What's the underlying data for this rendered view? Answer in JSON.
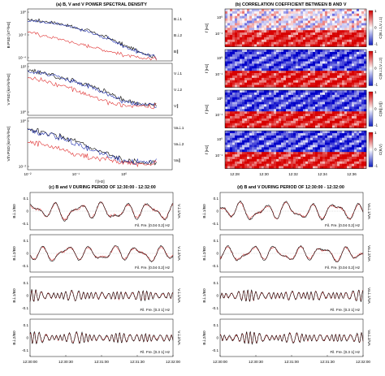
{
  "panel_a": {
    "title": "(a) B, V and V POWER SPECTRAL DENSITY",
    "x_ticks": [
      "10⁻²",
      "10⁻¹",
      "10⁰"
    ],
    "xlabel": "f [Hz]",
    "rows": [
      {
        "ylabel": "B PSD [nT²/Hz]",
        "y_ticks": [
          "10⁰",
          "10⁻²",
          "10⁻⁴"
        ],
        "legend": [
          "B⊥1",
          "B⊥2",
          "B∥"
        ],
        "legend_colors": [
          "#000000",
          "#1f2fb0",
          "#e03030"
        ]
      },
      {
        "ylabel": "V PSD [km²/s²/Hz]",
        "y_ticks": [
          "10²",
          "10⁰"
        ],
        "legend": [
          "V⊥1",
          "V⊥2",
          "V∥"
        ],
        "legend_colors": [
          "#000000",
          "#1f2fb0",
          "#e03030"
        ]
      },
      {
        "ylabel": "Vth PSD [km²/s²/Hz]",
        "y_ticks": [
          "10⁰",
          "10⁻²"
        ],
        "legend": [
          "Va⊥1",
          "Va⊥2",
          "Va∥"
        ],
        "legend_colors": [
          "#000000",
          "#1f2fb0",
          "#e03030"
        ]
      }
    ]
  },
  "panel_b": {
    "title": "(b) CORRELATION COEFFICIENT BETWEEN B AND V",
    "ylabel": "f [Hz]",
    "y_ticks": [
      "10⁰",
      "10⁻¹"
    ],
    "x_ticks": [
      "12:28",
      "12:30",
      "12:32",
      "12:34",
      "12:36"
    ],
    "colorbar_ticks": [
      "1",
      "0.5",
      "0",
      "-0.5",
      "-1"
    ],
    "colorbar_labels": [
      "C(B⊥1,V⊥1)",
      "C(B⊥2,V⊥2)",
      "C(B∥,V∥)",
      "C(B,V)"
    ]
  },
  "panel_c": {
    "title": "(c) B and V DURING PERIOD OF 12:30:00 - 12:32:00",
    "rows": [
      {
        "ylabel": "B⊥1/B0",
        "right_label": "V⊥1/VA",
        "filter": "Fil. Fre. [0.04 0.2] Hz"
      },
      {
        "ylabel": "B⊥2/B0",
        "right_label": "V⊥2/VA",
        "filter": "Fil. Fre. [0.04 0.2] Hz"
      },
      {
        "ylabel": "B⊥1/B0",
        "right_label": "V⊥1/VA",
        "filter": "Fil. Fre. [0.3 1] Hz"
      },
      {
        "ylabel": "B⊥2/B0",
        "right_label": "V⊥2/VA",
        "filter": "Fil. Fre. [0.3 1] Hz"
      }
    ],
    "y_ticks": [
      "0.1",
      "0",
      "-0.1"
    ],
    "x_ticks": [
      "12:30:00",
      "12:30:30",
      "12:31:00",
      "12:31:30",
      "12:32:00"
    ]
  },
  "panel_d": {
    "title": "(d) B and V DURING PERIOD OF 12:30:00 - 12:32:00",
    "rows": [
      {
        "ylabel": "B⊥1/B0",
        "right_label": "Va⊥1/VA",
        "filter": "Fil. Fre. [0.04 0.2] Hz"
      },
      {
        "ylabel": "B⊥2/B0",
        "right_label": "Va⊥2/VA",
        "filter": "Fil. Fre. [0.04 0.2] Hz"
      },
      {
        "ylabel": "B⊥1/B0",
        "right_label": "Va⊥1/VA",
        "filter": "Fil. Fre. [0.3 1] Hz"
      },
      {
        "ylabel": "B⊥2/B0",
        "right_label": "Va⊥2/VA",
        "filter": "Fil. Fre. [0.3 1] Hz"
      }
    ],
    "y_ticks": [
      "0.1",
      "0",
      "-0.1"
    ],
    "x_ticks": [
      "12:30:00",
      "12:30:30",
      "12:31:00",
      "12:31:30",
      "12:32:00"
    ]
  },
  "colors": {
    "black": "#000000",
    "blue": "#1f2fb0",
    "red": "#e03030"
  },
  "chart_data": [
    {
      "type": "line",
      "title": "(a) B, V and V POWER SPECTRAL DENSITY",
      "xlabel": "f [Hz]",
      "xscale": "log",
      "xlim": [
        0.01,
        10
      ],
      "yscale": "log",
      "rows": [
        {
          "ylabel": "B PSD [nT²/Hz]",
          "ylim": [
            5e-05,
            10
          ],
          "x": [
            0.01,
            0.02,
            0.05,
            0.1,
            0.2,
            0.5,
            1,
            2,
            5
          ],
          "series": [
            {
              "name": "B⊥1",
              "values": [
                0.8,
                0.6,
                0.3,
                0.12,
                0.05,
                0.01,
                0.002,
                0.0005,
                0.0001
              ]
            },
            {
              "name": "B⊥2",
              "values": [
                0.6,
                0.5,
                0.25,
                0.1,
                0.04,
                0.008,
                0.0015,
                0.0004,
                0.0001
              ]
            },
            {
              "name": "B∥",
              "values": [
                0.05,
                0.02,
                0.008,
                0.003,
                0.0015,
                0.0005,
                0.0002,
                0.0001,
                8e-05
              ]
            }
          ]
        },
        {
          "ylabel": "V PSD [km²/s²/Hz]",
          "ylim": [
            0.1,
            1000
          ],
          "x": [
            0.01,
            0.02,
            0.05,
            0.1,
            0.2,
            0.5,
            1,
            2,
            5
          ],
          "series": [
            {
              "name": "V⊥1",
              "values": [
                300,
                200,
                80,
                40,
                20,
                5,
                1.5,
                0.8,
                0.6
              ]
            },
            {
              "name": "V⊥2",
              "values": [
                250,
                180,
                70,
                35,
                15,
                4,
                1.2,
                0.7,
                0.6
              ]
            },
            {
              "name": "V∥",
              "values": [
                80,
                50,
                20,
                8,
                3,
                1,
                0.6,
                0.5,
                0.5
              ]
            }
          ]
        },
        {
          "ylabel": "Vth PSD [km²/s²/Hz]",
          "ylim": [
            0.005,
            10
          ],
          "x": [
            0.01,
            0.02,
            0.05,
            0.1,
            0.2,
            0.5,
            1,
            2,
            5
          ],
          "series": [
            {
              "name": "Va⊥1",
              "values": [
                2,
                1.2,
                0.6,
                0.3,
                0.12,
                0.04,
                0.02,
                0.015,
                0.015
              ]
            },
            {
              "name": "Va⊥2",
              "values": [
                1.8,
                1.1,
                0.5,
                0.25,
                0.1,
                0.035,
                0.02,
                0.015,
                0.015
              ]
            },
            {
              "name": "Va∥",
              "values": [
                0.3,
                0.2,
                0.1,
                0.05,
                0.03,
                0.02,
                0.015,
                0.012,
                0.012
              ]
            }
          ]
        }
      ]
    },
    {
      "type": "heatmap",
      "title": "(b) CORRELATION COEFFICIENT BETWEEN B AND V",
      "ylabel": "f [Hz]",
      "yscale": "log",
      "ylim": [
        0.04,
        1.5
      ],
      "x_ticks": [
        "12:28",
        "12:30",
        "12:32",
        "12:34",
        "12:36"
      ],
      "zlim": [
        -1,
        1
      ],
      "rows": [
        {
          "name": "C(B⊥1,V⊥1)",
          "low_freq_sign": 1,
          "high_freq_sign": 0
        },
        {
          "name": "C(B⊥2,V⊥2)",
          "low_freq_sign": 1,
          "high_freq_sign": -1
        },
        {
          "name": "C(B∥,V∥)",
          "low_freq_sign": 1,
          "high_freq_sign": -1
        },
        {
          "name": "C(B,V)",
          "low_freq_sign": 1,
          "high_freq_sign": -1
        }
      ]
    },
    {
      "type": "line",
      "title": "(c) B and V DURING PERIOD OF 12:30:00 - 12:32:00",
      "x_ticks": [
        "12:30:00",
        "12:30:30",
        "12:31:00",
        "12:31:30",
        "12:32:00"
      ],
      "ylim": [
        -0.15,
        0.15
      ],
      "rows": [
        {
          "filter_hz": [
            0.04,
            0.2
          ],
          "amplitude": 0.08,
          "series": [
            "B⊥1/B0",
            "V⊥1/VA"
          ]
        },
        {
          "filter_hz": [
            0.04,
            0.2
          ],
          "amplitude": 0.07,
          "series": [
            "B⊥2/B0",
            "V⊥2/VA"
          ]
        },
        {
          "filter_hz": [
            0.3,
            1
          ],
          "amplitude": 0.05,
          "series": [
            "B⊥1/B0",
            "V⊥1/VA"
          ]
        },
        {
          "filter_hz": [
            0.3,
            1
          ],
          "amplitude": 0.05,
          "series": [
            "B⊥2/B0",
            "V⊥2/VA"
          ]
        }
      ]
    },
    {
      "type": "line",
      "title": "(d) B and V DURING PERIOD OF 12:30:00 - 12:32:00",
      "x_ticks": [
        "12:30:00",
        "12:30:30",
        "12:31:00",
        "12:31:30",
        "12:32:00"
      ],
      "ylim": [
        -0.15,
        0.15
      ],
      "rows": [
        {
          "filter_hz": [
            0.04,
            0.2
          ],
          "amplitude": 0.08,
          "series": [
            "B⊥1/B0",
            "Va⊥1/VA"
          ]
        },
        {
          "filter_hz": [
            0.04,
            0.2
          ],
          "amplitude": 0.07,
          "series": [
            "B⊥2/B0",
            "Va⊥2/VA"
          ]
        },
        {
          "filter_hz": [
            0.3,
            1
          ],
          "amplitude": 0.05,
          "series": [
            "B⊥1/B0",
            "Va⊥1/VA"
          ]
        },
        {
          "filter_hz": [
            0.3,
            1
          ],
          "amplitude": 0.05,
          "series": [
            "B⊥2/B0",
            "Va⊥2/VA"
          ]
        }
      ]
    }
  ]
}
